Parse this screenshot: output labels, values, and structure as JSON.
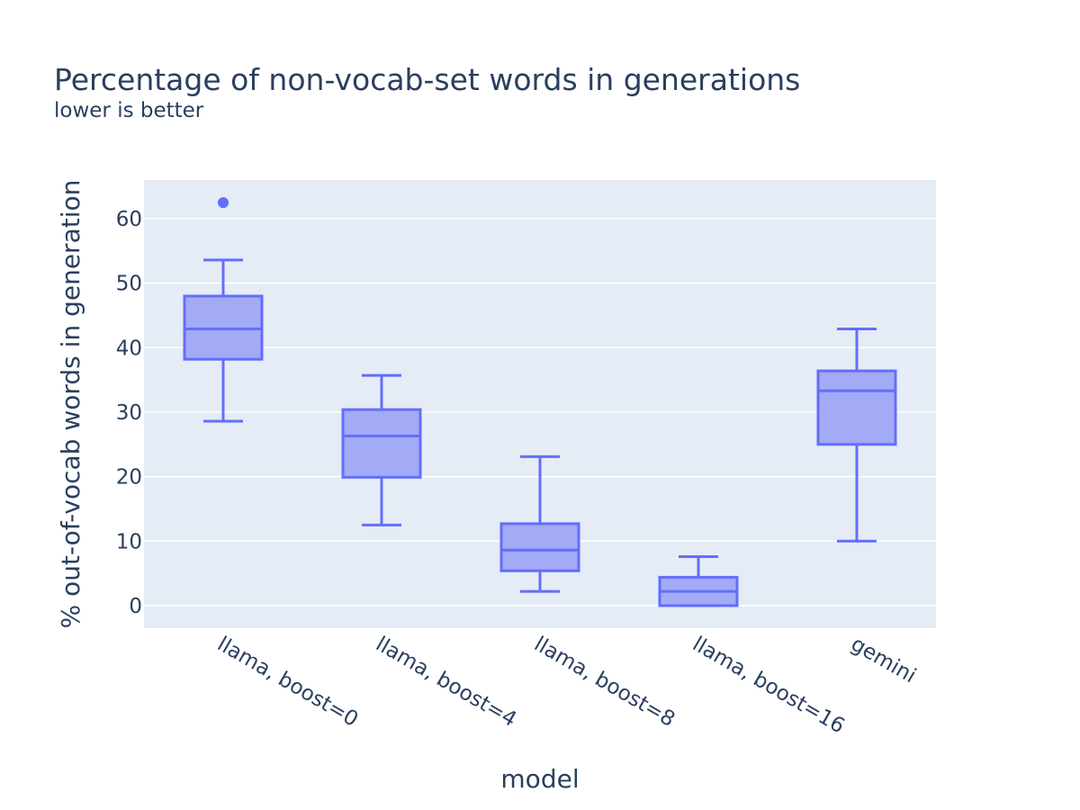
{
  "chart_data": {
    "type": "box",
    "title": "Percentage of non-vocab-set words in generations",
    "subtitle": "lower is better",
    "xlabel": "model",
    "ylabel": "% out-of-vocab words in generation",
    "ylim": [
      -3.5,
      66
    ],
    "yticks": [
      0,
      10,
      20,
      30,
      40,
      50,
      60
    ],
    "grid": true,
    "legend": "none",
    "categories": [
      "llama, boost=0",
      "llama, boost=4",
      "llama, boost=8",
      "llama, boost=16",
      "gemini"
    ],
    "boxes": [
      {
        "category": "llama, boost=0",
        "min": 28.6,
        "q1": 38.2,
        "median": 42.9,
        "q3": 48.0,
        "max": 53.6,
        "outliers": [
          62.5
        ]
      },
      {
        "category": "llama, boost=4",
        "min": 12.5,
        "q1": 19.9,
        "median": 26.3,
        "q3": 30.4,
        "max": 35.7,
        "outliers": []
      },
      {
        "category": "llama, boost=8",
        "min": 2.2,
        "q1": 5.4,
        "median": 8.6,
        "q3": 12.7,
        "max": 23.1,
        "outliers": []
      },
      {
        "category": "llama, boost=16",
        "min": 0.0,
        "q1": 0.0,
        "median": 2.2,
        "q3": 4.4,
        "max": 7.6,
        "outliers": []
      },
      {
        "category": "gemini",
        "min": 10.0,
        "q1": 25.0,
        "median": 33.3,
        "q3": 36.4,
        "max": 42.9,
        "outliers": []
      }
    ],
    "colors": {
      "box_line": "#636efa",
      "box_fill": "#a3aaf6",
      "plot_bg": "#e5ecf6",
      "grid": "#ffffff",
      "text": "#2a3f5f"
    }
  }
}
